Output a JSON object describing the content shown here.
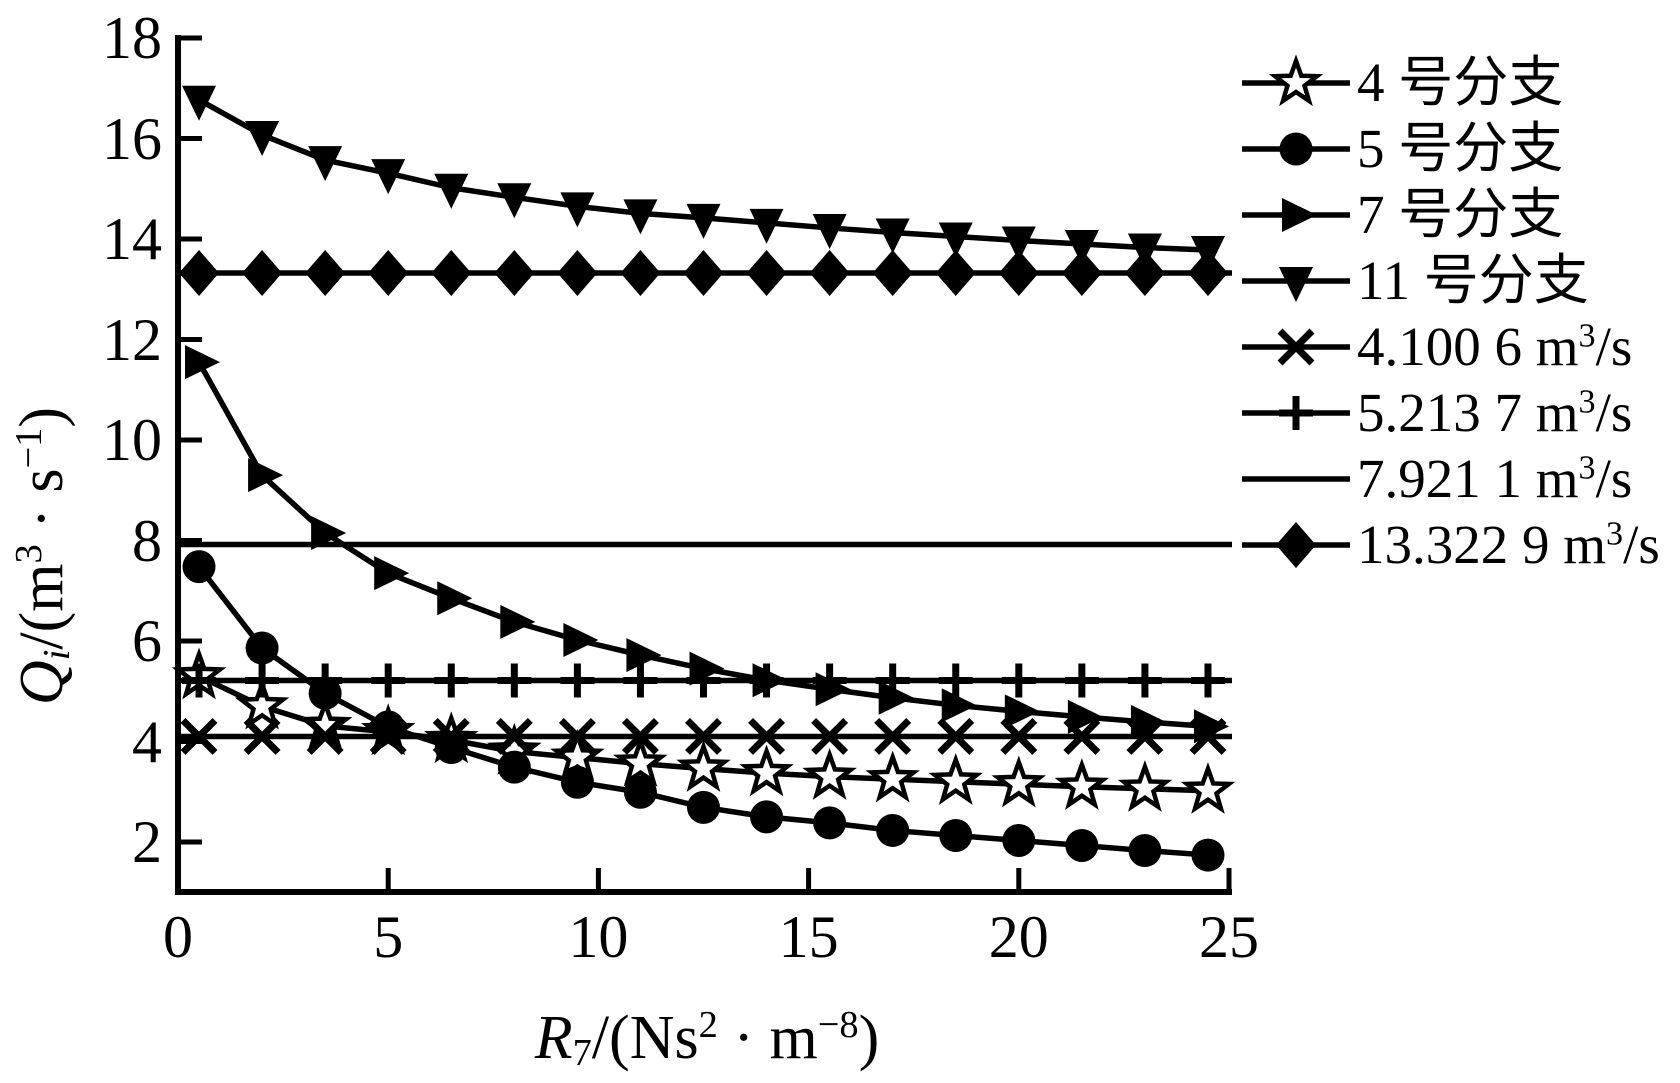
{
  "figure": {
    "background": "#ffffff",
    "ink_color": "#000000"
  },
  "chart_data": {
    "type": "line",
    "x": [
      0.5,
      2,
      3.5,
      5,
      6.5,
      8,
      9.5,
      11,
      12.5,
      14,
      15.5,
      17,
      18.5,
      20,
      21.5,
      23,
      24.5
    ],
    "series": [
      {
        "name": "4 号分支",
        "marker": "star-open",
        "values": [
          5.3,
          4.7,
          4.31,
          4.19,
          4.03,
          3.8,
          3.68,
          3.56,
          3.46,
          3.37,
          3.3,
          3.25,
          3.2,
          3.15,
          3.1,
          3.06,
          3.02
        ],
        "label_parts": [
          {
            "t": "4 号分支"
          }
        ]
      },
      {
        "name": "5 号分支",
        "marker": "circle-filled",
        "values": [
          7.48,
          5.86,
          4.96,
          4.29,
          3.88,
          3.49,
          3.19,
          2.99,
          2.69,
          2.5,
          2.38,
          2.23,
          2.13,
          2.03,
          1.93,
          1.83,
          1.74
        ],
        "label_parts": [
          {
            "t": "5 号分支"
          }
        ]
      },
      {
        "name": "7 号分支",
        "marker": "triangle-right-filled",
        "values": [
          11.55,
          9.3,
          8.15,
          7.35,
          6.85,
          6.38,
          6.02,
          5.72,
          5.45,
          5.22,
          5.04,
          4.87,
          4.72,
          4.6,
          4.49,
          4.39,
          4.3
        ],
        "label_parts": [
          {
            "t": "7 号分支"
          }
        ]
      },
      {
        "name": "11 号分支",
        "marker": "triangle-down-filled",
        "values": [
          16.77,
          16.07,
          15.57,
          15.31,
          15.02,
          14.83,
          14.65,
          14.51,
          14.42,
          14.32,
          14.22,
          14.13,
          14.05,
          13.97,
          13.9,
          13.83,
          13.78
        ],
        "label_parts": [
          {
            "t": "11 号分支"
          }
        ]
      },
      {
        "name": "4.100 6 m³/s",
        "marker": "x",
        "constant": 4.1006,
        "label_parts": [
          {
            "t": "4.100 6 m"
          },
          {
            "t": "3",
            "style": "sup"
          },
          {
            "t": "/s"
          }
        ]
      },
      {
        "name": "5.213 7 m³/s",
        "marker": "plus",
        "constant": 5.2137,
        "label_parts": [
          {
            "t": "5.213 7 m"
          },
          {
            "t": "3",
            "style": "sup"
          },
          {
            "t": "/s"
          }
        ]
      },
      {
        "name": "7.921 1 m³/s",
        "marker": "none",
        "constant": 7.9211,
        "label_parts": [
          {
            "t": "7.921 1 m"
          },
          {
            "t": "3",
            "style": "sup"
          },
          {
            "t": "/s"
          }
        ]
      },
      {
        "name": "13.322 9 m³/s",
        "marker": "diamond-filled",
        "constant": 13.3229,
        "label_parts": [
          {
            "t": "13.322 9 m"
          },
          {
            "t": "3",
            "style": "sup"
          },
          {
            "t": "/s"
          }
        ]
      }
    ],
    "xlabel": "R₇/(Ns² · m⁻⁸)",
    "ylabel": "Qᵢ/(m³ · s⁻¹)",
    "xlabel_parts": [
      {
        "t": "R",
        "style": "i"
      },
      {
        "t": "7",
        "style": "sub"
      },
      {
        "t": "/(Ns"
      },
      {
        "t": "2",
        "style": "sup"
      },
      {
        "t": " · "
      },
      {
        "t": "m"
      },
      {
        "t": "−8",
        "style": "sup"
      },
      {
        "t": ")"
      }
    ],
    "ylabel_parts": [
      {
        "t": "Q",
        "style": "i"
      },
      {
        "t": "i",
        "style": "isub"
      },
      {
        "t": "/(m"
      },
      {
        "t": "3",
        "style": "sup"
      },
      {
        "t": " · "
      },
      {
        "t": "s"
      },
      {
        "t": "−1",
        "style": "sup"
      },
      {
        "t": ")"
      }
    ],
    "x_ticks": [
      0,
      5,
      10,
      15,
      20,
      25
    ],
    "y_ticks": [
      2,
      4,
      6,
      8,
      10,
      12,
      14,
      16,
      18
    ],
    "xlim": [
      0,
      25
    ],
    "ylim": [
      1,
      18
    ],
    "grid": false,
    "legend_position": "right-top"
  }
}
